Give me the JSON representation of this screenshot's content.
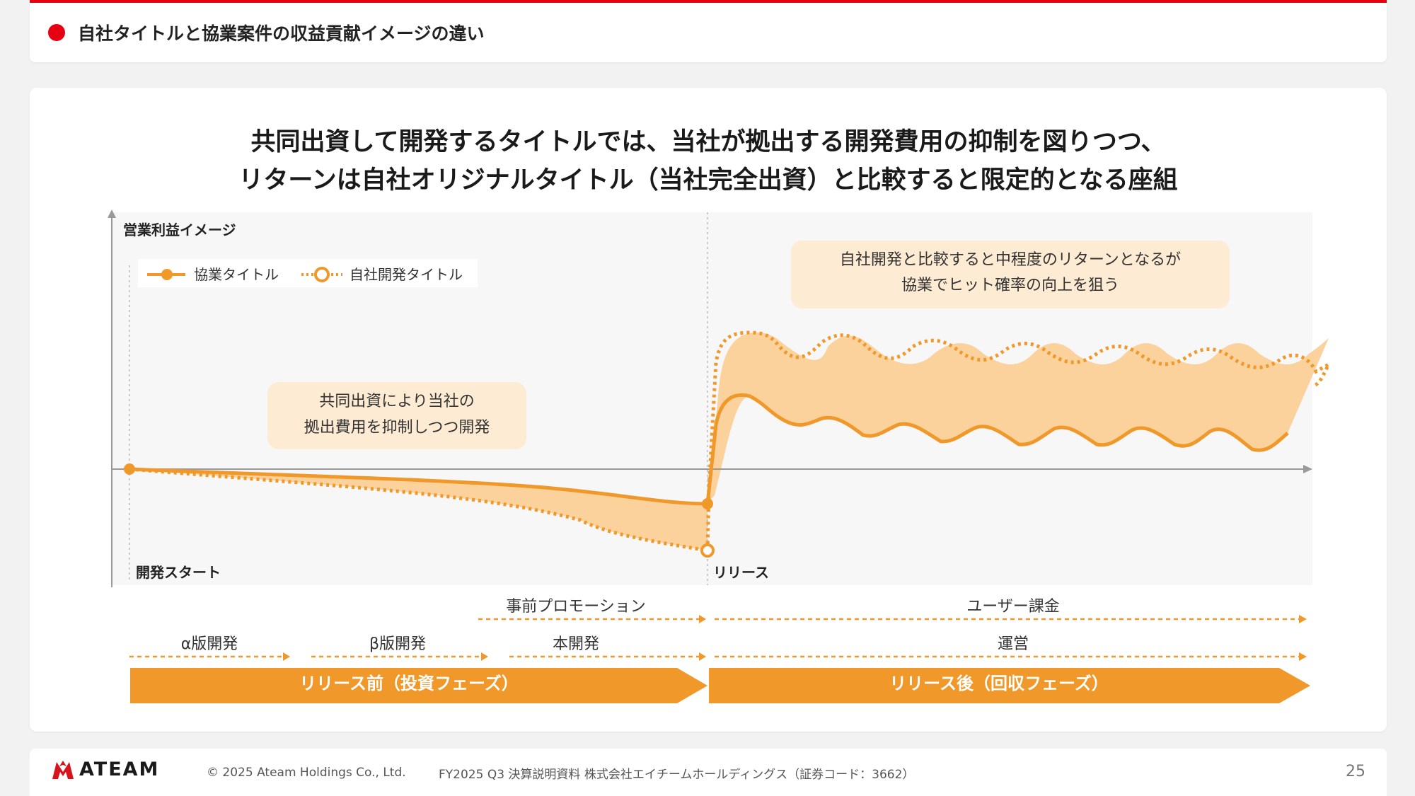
{
  "header": {
    "title": "自社タイトルと協業案件の収益貢献イメージの違い"
  },
  "headline": {
    "line1": "共同出資して開発するタイトルでは、当社が拠出する開発費用の抑制を図りつつ、",
    "line2": "リターンは自社オリジナルタイトル（当社完全出資）と比較すると限定的となる座組"
  },
  "diagram": {
    "y_axis_label": "営業利益イメージ",
    "legend": {
      "collab": "協業タイトル",
      "own": "自社開発タイトル"
    },
    "callout_pre": {
      "line1": "共同出資により当社の",
      "line2": "拠出費用を抑制しつつ開発"
    },
    "callout_post": {
      "line1": "自社開発と比較すると中程度のリターンとなるが",
      "line2": "協業でヒット確率の向上を狙う"
    },
    "dev_start": "開発スタート",
    "release": "リリース",
    "timeline": {
      "promotion": "事前プロモーション",
      "user_billing": "ユーザー課金",
      "alpha": "α版開発",
      "beta": "β版開発",
      "main_dev": "本開発",
      "operation": "運営",
      "phase_pre": "リリース前（投資フェーズ）",
      "phase_post": "リリース後（回収フェーズ）"
    },
    "colors": {
      "orange": "#f0982a",
      "fill": "#fbd19c",
      "band": "#f7f7f7",
      "callout": "#fdebd3"
    }
  },
  "footer": {
    "logo": "ATEAM",
    "copyright": "© 2025 Ateam Holdings Co., Ltd.",
    "note": "FY2025 Q3 決算説明資料 株式会社エイチームホールディングス（証券コード：3662）",
    "page": "25"
  }
}
